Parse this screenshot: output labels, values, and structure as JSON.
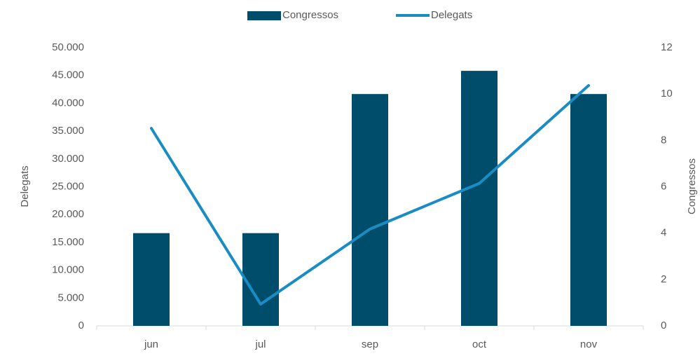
{
  "chart_data": {
    "type": "bar-line",
    "categories": [
      "jun",
      "jul",
      "sep",
      "oct",
      "nov"
    ],
    "series": [
      {
        "name": "Congressos",
        "type": "bar",
        "axis": "y2",
        "color": "#004d6b",
        "values": [
          4,
          4,
          10,
          11,
          10
        ]
      },
      {
        "name": "Delegats",
        "type": "line",
        "axis": "y",
        "color": "#1a8cc4",
        "values": [
          35500,
          3900,
          17400,
          25600,
          43200
        ]
      }
    ],
    "y_label": "Delegats",
    "y2_label": "Congressos",
    "ylim": [
      0,
      50000
    ],
    "yticks": [
      0,
      {
        "value": 5000,
        "label": "5.000"
      },
      {
        "value": 10000,
        "label": "10.000"
      },
      {
        "value": 15000,
        "label": "15.000"
      },
      {
        "value": 20000,
        "label": "20.000"
      },
      {
        "value": 25000,
        "label": "25.000"
      },
      {
        "value": 30000,
        "label": "30.000"
      },
      {
        "value": 35000,
        "label": "35.000"
      },
      {
        "value": 40000,
        "label": "40.000"
      },
      {
        "value": 45000,
        "label": "45.000"
      },
      {
        "value": 50000,
        "label": "50.000"
      }
    ],
    "y2lim": [
      0,
      12
    ],
    "y2ticks": [
      0,
      2,
      4,
      6,
      8,
      10,
      12
    ],
    "legend": "top"
  }
}
